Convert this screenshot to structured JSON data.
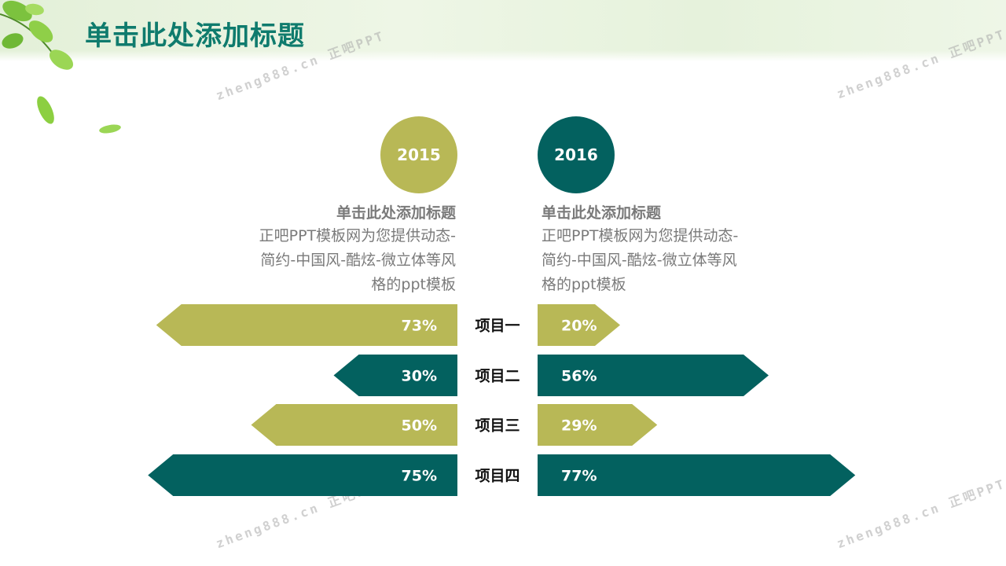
{
  "title": "单击此处添加标题",
  "watermarks": [
    {
      "text": "zheng888.cn 正吧PPT"
    },
    {
      "text": "zheng888.cn 正吧PPT"
    },
    {
      "text": "zheng888.cn 正吧PPT"
    },
    {
      "text": "zheng888.cn 正吧PPT"
    }
  ],
  "left_block": {
    "year": "2015",
    "heading": "单击此处添加标题",
    "lines": [
      "正吧PPT模板网为您提供动态-",
      "简约-中国风-酷炫-微立体等风",
      "格的ppt模板"
    ]
  },
  "right_block": {
    "year": "2016",
    "heading": "单击此处添加标题",
    "lines": [
      "正吧PPT模板网为您提供动态-",
      "简约-中国风-酷炫-微立体等风",
      "格的ppt模板"
    ]
  },
  "colors": {
    "olive": "#b8b856",
    "teal": "#03615f",
    "title": "#0f7b6d",
    "text": "#7a7a7a"
  },
  "chart_data": {
    "type": "bar",
    "categories": [
      "项目一",
      "项目二",
      "项目三",
      "项目四"
    ],
    "series": [
      {
        "name": "2015",
        "values": [
          73,
          30,
          50,
          75
        ],
        "labels": [
          "73%",
          "30%",
          "50%",
          "75%"
        ]
      },
      {
        "name": "2016",
        "values": [
          20,
          56,
          29,
          77
        ],
        "labels": [
          "20%",
          "56%",
          "29%",
          "77%"
        ]
      }
    ],
    "row_colors": [
      "#b8b856",
      "#03615f",
      "#b8b856",
      "#03615f"
    ],
    "xlim": [
      0,
      100
    ],
    "legend": "none",
    "grid": false
  }
}
